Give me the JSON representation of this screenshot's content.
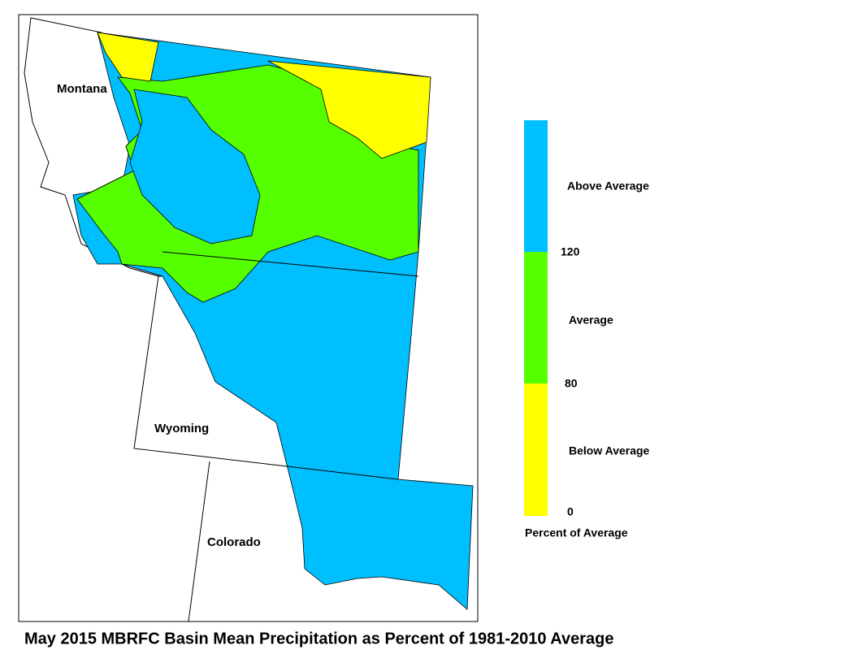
{
  "map": {
    "title": "May 2015 MBRFC Basin Mean Precipitation as Percent of 1981-2010 Average",
    "states": [
      "Montana",
      "Wyoming",
      "Colorado"
    ],
    "legend": {
      "title": "Percent of Average",
      "classes": [
        {
          "name": "Above Average",
          "color": "#00bfff"
        },
        {
          "name": "Average",
          "color": "#55ff00"
        },
        {
          "name": "Below Average",
          "color": "#ffff00"
        }
      ],
      "ticks": [
        120,
        80,
        0
      ]
    }
  }
}
